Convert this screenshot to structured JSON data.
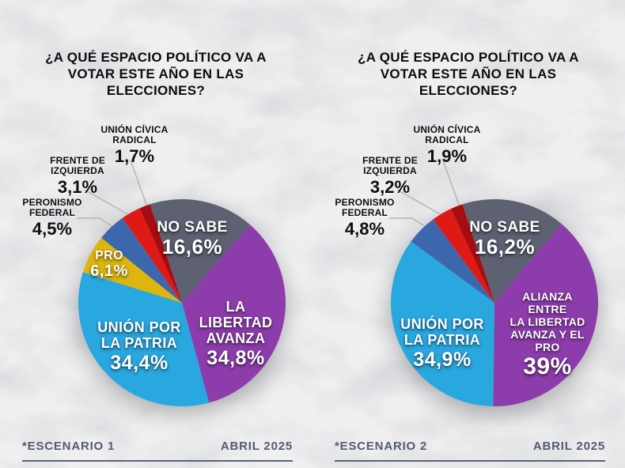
{
  "page": {
    "background_color": "#f0f0f1",
    "texture": "crumpled-paper"
  },
  "chart_data": [
    {
      "type": "pie",
      "title": "¿A QUÉ ESPACIO POLÍTICO VA A VOTAR ESTE AÑO EN LAS ELECCIONES?",
      "footer": {
        "scenario": "*ESCENARIO 1",
        "date": "ABRIL 2025"
      },
      "legend_position": "labels-on-and-around-pie",
      "start_angle_deg": -18,
      "slices": [
        {
          "party": "NO SABE",
          "pct": 16.6,
          "pct_label": "16,6%",
          "color": "#5d6171",
          "label_placement": "inside",
          "label_lines": [
            "NO SABE"
          ]
        },
        {
          "party": "LA LIBERTAD AVANZA",
          "pct": 34.8,
          "pct_label": "34,8%",
          "color": "#8d3dab",
          "label_placement": "inside",
          "label_lines": [
            "LA LIBERTAD",
            "AVANZA"
          ]
        },
        {
          "party": "UNIÓN POR LA PATRIA",
          "pct": 34.4,
          "pct_label": "34,4%",
          "color": "#29a8e0",
          "label_placement": "inside",
          "label_lines": [
            "UNIÓN POR",
            "LA PATRIA"
          ]
        },
        {
          "party": "PRO",
          "pct": 6.1,
          "pct_label": "6,1%",
          "color": "#ddb50f",
          "label_placement": "inside",
          "label_lines": [
            "PRO"
          ]
        },
        {
          "party": "PERONISMO FEDERAL",
          "pct": 4.5,
          "pct_label": "4,5%",
          "color": "#3d67ad",
          "label_placement": "outside",
          "label_lines": [
            "PERONISMO",
            "FEDERAL"
          ]
        },
        {
          "party": "FRENTE DE IZQUIERDA",
          "pct": 3.1,
          "pct_label": "3,1%",
          "color": "#df1916",
          "label_placement": "outside",
          "label_lines": [
            "FRENTE DE",
            "IZQUIERDA"
          ]
        },
        {
          "party": "UNIÓN CÍVICA RADICAL",
          "pct": 1.7,
          "pct_label": "1,7%",
          "color": "#a50d10",
          "label_placement": "outside",
          "label_lines": [
            "UNIÓN CÍVICA",
            "RADICAL"
          ]
        }
      ]
    },
    {
      "type": "pie",
      "title": "¿A QUÉ ESPACIO POLÍTICO VA A VOTAR ESTE AÑO EN LAS ELECCIONES?",
      "footer": {
        "scenario": "*ESCENARIO 2",
        "date": "ABRIL 2025"
      },
      "legend_position": "labels-on-and-around-pie",
      "start_angle_deg": -18,
      "slices": [
        {
          "party": "NO SABE",
          "pct": 16.2,
          "pct_label": "16,2%",
          "color": "#5d6171",
          "label_placement": "inside",
          "label_lines": [
            "NO SABE"
          ]
        },
        {
          "party": "ALIANZA ENTRE LA LIBERTAD AVANZA Y EL PRO",
          "pct": 39,
          "pct_label": "39%",
          "color": "#8d3dab",
          "label_placement": "inside",
          "label_lines": [
            "ALIANZA ENTRE",
            "LA LIBERTAD",
            "AVANZA Y EL PRO"
          ]
        },
        {
          "party": "UNIÓN POR LA PATRIA",
          "pct": 34.9,
          "pct_label": "34,9%",
          "color": "#29a8e0",
          "label_placement": "inside",
          "label_lines": [
            "UNIÓN POR",
            "LA PATRIA"
          ]
        },
        {
          "party": "PERONISMO FEDERAL",
          "pct": 4.8,
          "pct_label": "4,8%",
          "color": "#3d67ad",
          "label_placement": "outside",
          "label_lines": [
            "PERONISMO",
            "FEDERAL"
          ]
        },
        {
          "party": "FRENTE DE IZQUIERDA",
          "pct": 3.2,
          "pct_label": "3,2%",
          "color": "#df1916",
          "label_placement": "outside",
          "label_lines": [
            "FRENTE DE",
            "IZQUIERDA"
          ]
        },
        {
          "party": "UNIÓN CÍVICA RADICAL",
          "pct": 1.9,
          "pct_label": "1,9%",
          "color": "#a50d10",
          "label_placement": "outside",
          "label_lines": [
            "UNIÓN CÍVICA",
            "RADICAL"
          ]
        }
      ]
    }
  ]
}
